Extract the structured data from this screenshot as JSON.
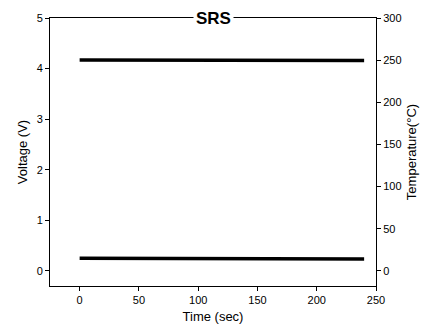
{
  "chart_data": {
    "type": "line",
    "title": "SRS",
    "x_label": "Time (sec)",
    "y_label": "Voltage (V)",
    "y2_label": "Temperature(°C)",
    "x": [
      0,
      50,
      100,
      150,
      200,
      240
    ],
    "series": [
      {
        "color": "#000000",
        "values": [
          4.17,
          4.17,
          4.16,
          4.16,
          4.16,
          4.16
        ]
      },
      {
        "color": "#000000",
        "axis": "y2",
        "values": [
          15,
          15,
          14,
          14,
          14,
          14
        ]
      }
    ],
    "xlim": [
      -25,
      250
    ],
    "xticks": [
      0,
      50,
      100,
      150,
      200,
      250
    ],
    "ylim": [
      -0.3,
      5
    ],
    "yticks": [
      0,
      1,
      2,
      3,
      4,
      5
    ],
    "y2lim": [
      -18,
      300
    ],
    "y2ticks": [
      0,
      50,
      100,
      150,
      200,
      250,
      300
    ],
    "grid": false
  }
}
